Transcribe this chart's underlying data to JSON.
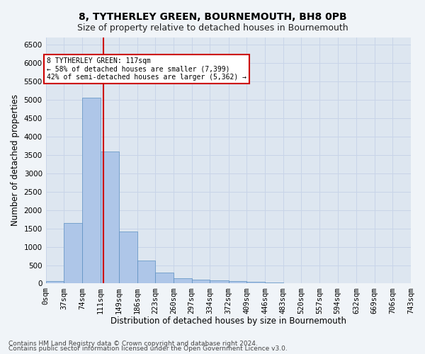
{
  "title": "8, TYTHERLEY GREEN, BOURNEMOUTH, BH8 0PB",
  "subtitle": "Size of property relative to detached houses in Bournemouth",
  "xlabel": "Distribution of detached houses by size in Bournemouth",
  "ylabel": "Number of detached properties",
  "footer_line1": "Contains HM Land Registry data © Crown copyright and database right 2024.",
  "footer_line2": "Contains public sector information licensed under the Open Government Licence v3.0.",
  "bar_edges": [
    0,
    37,
    74,
    111,
    149,
    186,
    223,
    260,
    297,
    334,
    372,
    409,
    446,
    483,
    520,
    557,
    594,
    632,
    669,
    706,
    743
  ],
  "bar_values": [
    75,
    1650,
    5060,
    3590,
    1410,
    620,
    295,
    150,
    110,
    80,
    60,
    55,
    30,
    0,
    0,
    0,
    0,
    0,
    0,
    0
  ],
  "bar_color": "#aec6e8",
  "bar_edge_color": "#5a8fc0",
  "vline_x": 117,
  "vline_color": "#cc0000",
  "annotation_text": "8 TYTHERLEY GREEN: 117sqm\n← 58% of detached houses are smaller (7,399)\n42% of semi-detached houses are larger (5,362) →",
  "annotation_box_color": "#ffffff",
  "annotation_box_edge": "#cc0000",
  "ylim": [
    0,
    6700
  ],
  "yticks": [
    0,
    500,
    1000,
    1500,
    2000,
    2500,
    3000,
    3500,
    4000,
    4500,
    5000,
    5500,
    6000,
    6500
  ],
  "grid_color": "#c8d4e8",
  "bg_color": "#dde6f0",
  "fig_bg_color": "#f0f4f8",
  "title_fontsize": 10,
  "subtitle_fontsize": 9,
  "axis_label_fontsize": 8.5,
  "tick_fontsize": 7.5,
  "footer_fontsize": 6.5
}
